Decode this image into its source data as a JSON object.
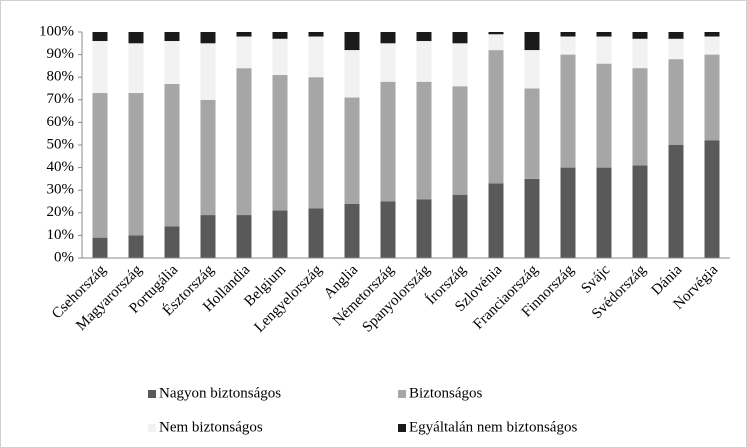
{
  "chart_data": {
    "type": "stacked-bar",
    "categories": [
      "Csehország",
      "Magyarország",
      "Portugália",
      "Észtország",
      "Hollandia",
      "Belgium",
      "Lengyelország",
      "Anglia",
      "Németország",
      "Spanyolország",
      "Írország",
      "Szlovénia",
      "Franciaország",
      "Finnország",
      "Svájc",
      "Svédország",
      "Dánia",
      "Norvégia"
    ],
    "series": [
      {
        "name": "Nagyon biztonságos",
        "color": "#595959",
        "values": [
          9,
          10,
          14,
          19,
          19,
          21,
          22,
          24,
          25,
          26,
          28,
          33,
          35,
          40,
          40,
          41,
          50,
          52
        ]
      },
      {
        "name": "Biztonságos",
        "color": "#a6a6a6",
        "values": [
          64,
          63,
          63,
          51,
          65,
          60,
          58,
          47,
          53,
          52,
          48,
          59,
          40,
          50,
          46,
          43,
          38,
          38
        ]
      },
      {
        "name": "Nem biztonságos",
        "color": "#f2f2f2",
        "values": [
          23,
          22,
          19,
          25,
          14,
          16,
          18,
          21,
          17,
          18,
          19,
          7,
          17,
          8,
          12,
          13,
          9,
          8
        ]
      },
      {
        "name": "Egyáltalán nem biztonságos",
        "color": "#1a1a1a",
        "values": [
          4,
          5,
          4,
          5,
          2,
          3,
          2,
          8,
          5,
          4,
          5,
          1,
          8,
          2,
          2,
          3,
          3,
          2
        ]
      }
    ],
    "ylim": [
      0,
      100
    ],
    "yticks": [
      {
        "value": 0,
        "label": "0%"
      },
      {
        "value": 10,
        "label": "10%"
      },
      {
        "value": 20,
        "label": "20%"
      },
      {
        "value": 30,
        "label": "30%"
      },
      {
        "value": 40,
        "label": "40%"
      },
      {
        "value": 50,
        "label": "50%"
      },
      {
        "value": 60,
        "label": "60%"
      },
      {
        "value": 70,
        "label": "70%"
      },
      {
        "value": 80,
        "label": "80%"
      },
      {
        "value": 90,
        "label": "90%"
      },
      {
        "value": 100,
        "label": "100%"
      }
    ],
    "grid": false
  }
}
